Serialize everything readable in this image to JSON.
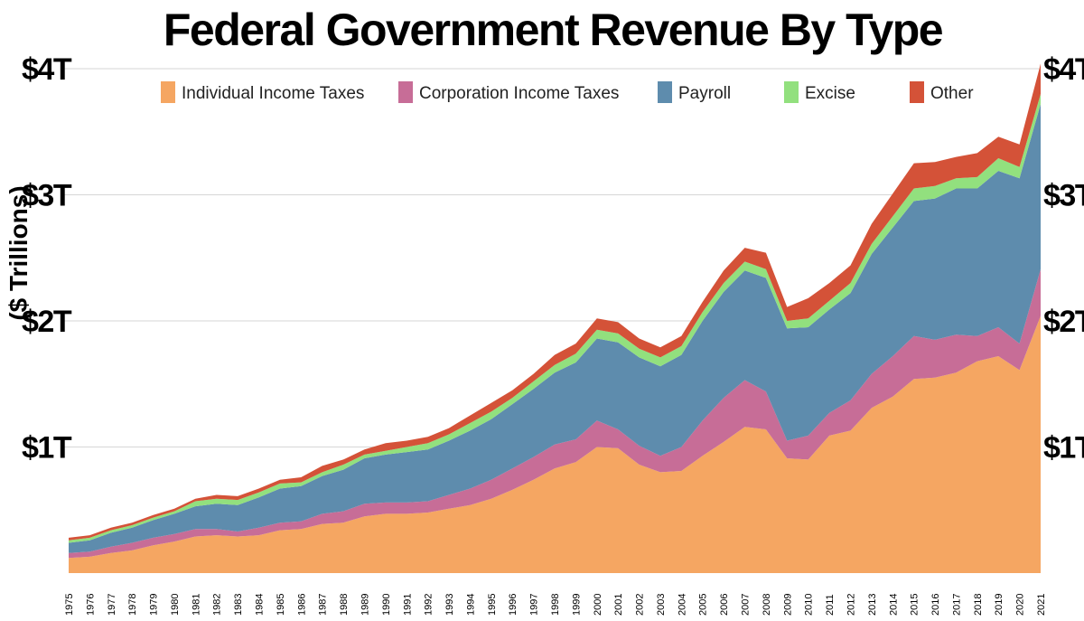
{
  "chart_data": {
    "type": "area",
    "stacked": true,
    "title": "Federal Government Revenue By Type",
    "ylabel": "($ Trillions)",
    "xlabel": "",
    "ylim": [
      0,
      4.1
    ],
    "y_ticks": [
      {
        "value": 1,
        "label": "$1T"
      },
      {
        "value": 2,
        "label": "$2T"
      },
      {
        "value": 3,
        "label": "$3T"
      },
      {
        "value": 4,
        "label": "$4T"
      }
    ],
    "grid": true,
    "legend_position": "top",
    "x": [
      "1975",
      "1976",
      "1977",
      "1978",
      "1979",
      "1980",
      "1981",
      "1982",
      "1983",
      "1984",
      "1985",
      "1986",
      "1987",
      "1988",
      "1989",
      "1990",
      "1991",
      "1992",
      "1993",
      "1994",
      "1995",
      "1996",
      "1997",
      "1998",
      "1999",
      "2000",
      "2001",
      "2002",
      "2003",
      "2004",
      "2005",
      "2006",
      "2007",
      "2008",
      "2009",
      "2010",
      "2011",
      "2012",
      "2013",
      "2014",
      "2015",
      "2016",
      "2017",
      "2018",
      "2019",
      "2020",
      "2021"
    ],
    "series": [
      {
        "name": "Individual Income Taxes",
        "color": "#F5A662",
        "values": [
          0.12,
          0.13,
          0.16,
          0.18,
          0.22,
          0.25,
          0.29,
          0.3,
          0.29,
          0.3,
          0.34,
          0.35,
          0.39,
          0.4,
          0.45,
          0.47,
          0.47,
          0.48,
          0.51,
          0.54,
          0.59,
          0.66,
          0.74,
          0.83,
          0.88,
          1.0,
          0.99,
          0.86,
          0.8,
          0.81,
          0.93,
          1.04,
          1.16,
          1.14,
          0.91,
          0.9,
          1.09,
          1.13,
          1.31,
          1.4,
          1.54,
          1.55,
          1.59,
          1.68,
          1.72,
          1.61,
          2.04
        ]
      },
      {
        "name": "Corporation Income Taxes",
        "color": "#C76D97",
        "values": [
          0.04,
          0.04,
          0.05,
          0.06,
          0.06,
          0.06,
          0.06,
          0.05,
          0.04,
          0.06,
          0.06,
          0.06,
          0.08,
          0.09,
          0.1,
          0.09,
          0.09,
          0.09,
          0.11,
          0.13,
          0.15,
          0.17,
          0.18,
          0.19,
          0.18,
          0.21,
          0.15,
          0.15,
          0.13,
          0.19,
          0.28,
          0.35,
          0.37,
          0.3,
          0.14,
          0.19,
          0.18,
          0.24,
          0.27,
          0.32,
          0.34,
          0.3,
          0.3,
          0.2,
          0.23,
          0.21,
          0.37
        ]
      },
      {
        "name": "Payroll",
        "color": "#5E8CAD",
        "values": [
          0.08,
          0.09,
          0.11,
          0.12,
          0.14,
          0.16,
          0.18,
          0.2,
          0.21,
          0.24,
          0.27,
          0.28,
          0.3,
          0.33,
          0.36,
          0.38,
          0.4,
          0.41,
          0.43,
          0.46,
          0.48,
          0.51,
          0.54,
          0.57,
          0.61,
          0.65,
          0.69,
          0.7,
          0.71,
          0.73,
          0.79,
          0.84,
          0.87,
          0.9,
          0.89,
          0.86,
          0.82,
          0.85,
          0.95,
          1.02,
          1.07,
          1.12,
          1.16,
          1.17,
          1.24,
          1.31,
          1.31
        ]
      },
      {
        "name": "Excise",
        "color": "#92E07E",
        "values": [
          0.02,
          0.02,
          0.02,
          0.02,
          0.02,
          0.02,
          0.04,
          0.04,
          0.04,
          0.04,
          0.04,
          0.03,
          0.03,
          0.04,
          0.03,
          0.03,
          0.04,
          0.05,
          0.05,
          0.06,
          0.06,
          0.05,
          0.06,
          0.06,
          0.07,
          0.07,
          0.07,
          0.07,
          0.07,
          0.07,
          0.07,
          0.07,
          0.07,
          0.07,
          0.06,
          0.07,
          0.07,
          0.08,
          0.08,
          0.09,
          0.1,
          0.1,
          0.08,
          0.09,
          0.1,
          0.09,
          0.08
        ]
      },
      {
        "name": "Other",
        "color": "#D45238",
        "values": [
          0.02,
          0.02,
          0.02,
          0.02,
          0.02,
          0.02,
          0.02,
          0.03,
          0.03,
          0.03,
          0.03,
          0.04,
          0.05,
          0.04,
          0.04,
          0.06,
          0.05,
          0.05,
          0.05,
          0.06,
          0.07,
          0.06,
          0.06,
          0.08,
          0.08,
          0.09,
          0.09,
          0.08,
          0.08,
          0.08,
          0.08,
          0.1,
          0.11,
          0.13,
          0.11,
          0.16,
          0.14,
          0.14,
          0.16,
          0.18,
          0.2,
          0.19,
          0.17,
          0.19,
          0.17,
          0.18,
          0.24
        ]
      }
    ]
  }
}
